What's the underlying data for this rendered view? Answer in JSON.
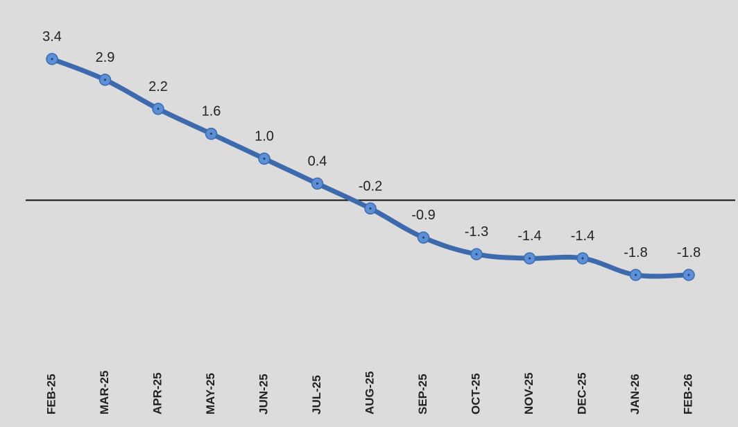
{
  "chart_data": {
    "type": "line",
    "categories": [
      "FEB-25",
      "MAR-25",
      "APR-25",
      "MAY-25",
      "JUN-25",
      "JUL-25",
      "AUG-25",
      "SEP-25",
      "OCT-25",
      "NOV-25",
      "DEC-25",
      "JAN-26",
      "FEB-26"
    ],
    "values": [
      3.4,
      2.9,
      2.2,
      1.6,
      1.0,
      0.4,
      -0.2,
      -0.9,
      -1.3,
      -1.4,
      -1.4,
      -1.8,
      -1.8
    ],
    "value_labels": [
      "3.4",
      "2.9",
      "2.2",
      "1.6",
      "1.0",
      "0.4",
      "-0.2",
      "-0.9",
      "-1.3",
      "-1.4",
      "-1.4",
      "-1.8",
      "-1.8"
    ],
    "color": "#3d6aad",
    "marker_color": "#5b8fd6"
  }
}
